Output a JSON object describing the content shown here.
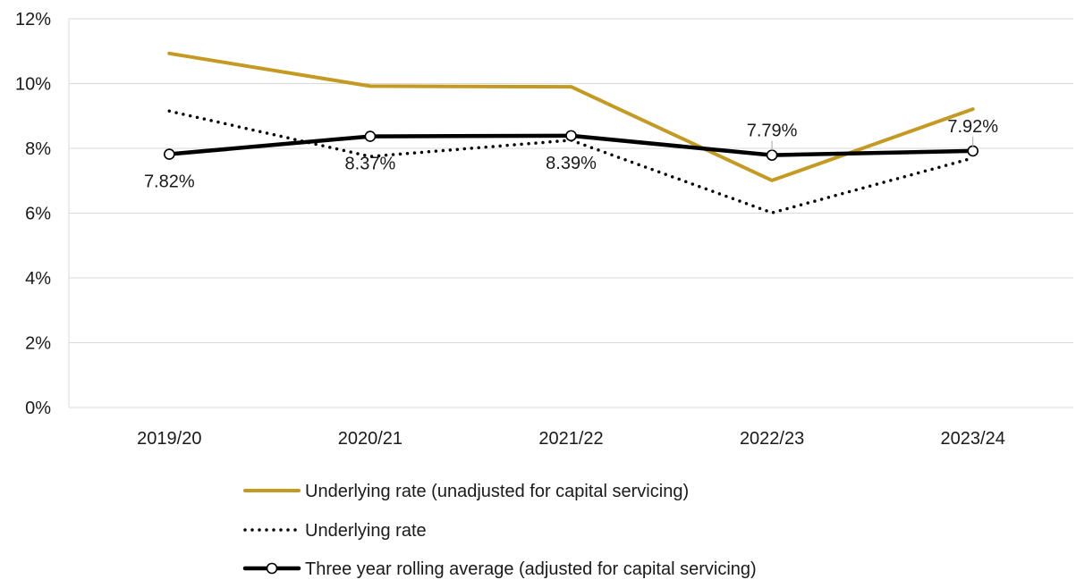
{
  "chart_data": {
    "type": "line",
    "title": "",
    "xlabel": "",
    "ylabel": "",
    "categories": [
      "2019/20",
      "2020/21",
      "2021/22",
      "2022/23",
      "2023/24"
    ],
    "ylim": [
      0,
      0.12
    ],
    "y_ticks": [
      0,
      0.02,
      0.04,
      0.06,
      0.08,
      0.1,
      0.12
    ],
    "y_tick_labels": [
      "0%",
      "2%",
      "4%",
      "6%",
      "8%",
      "10%",
      "12%"
    ],
    "grid": true,
    "legend_position": "bottom",
    "series": [
      {
        "name": "Underlying rate (unadjusted for capital servicing)",
        "values": [
          0.1093,
          0.0992,
          0.099,
          0.0701,
          0.0921
        ],
        "color": "#c49a22",
        "style": "solid",
        "markers": false,
        "data_labels": []
      },
      {
        "name": "Underlying rate",
        "values": [
          0.0915,
          0.0775,
          0.0825,
          0.0601,
          0.077
        ],
        "color": "#000000",
        "style": "dotted",
        "markers": false,
        "data_labels": []
      },
      {
        "name": "Three year rolling average (adjusted for capital servicing)",
        "values": [
          0.0782,
          0.0837,
          0.0839,
          0.0779,
          0.0792
        ],
        "color": "#000000",
        "style": "solid",
        "markers": true,
        "data_labels": [
          "7.82%",
          "8.37%",
          "8.39%",
          "7.79%",
          "7.92%"
        ]
      }
    ]
  }
}
